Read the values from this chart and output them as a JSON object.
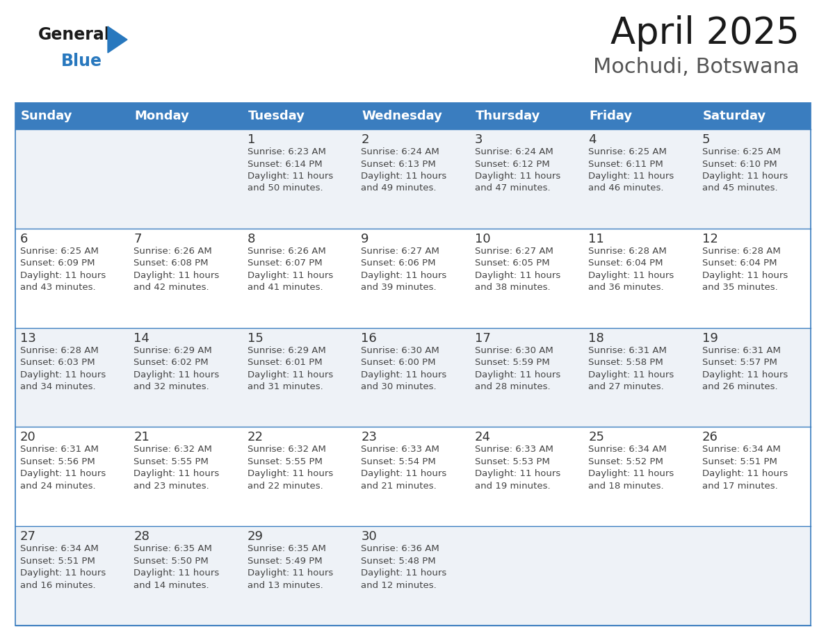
{
  "title": "April 2025",
  "subtitle": "Mochudi, Botswana",
  "days_of_week": [
    "Sunday",
    "Monday",
    "Tuesday",
    "Wednesday",
    "Thursday",
    "Friday",
    "Saturday"
  ],
  "header_bg": "#3a7dbf",
  "header_text": "#ffffff",
  "row_bg_odd": "#eef2f7",
  "row_bg_even": "#ffffff",
  "cell_border": "#3a7dbf",
  "day_number_color": "#333333",
  "text_color": "#444444",
  "calendar_data": [
    [
      "",
      "",
      "1\nSunrise: 6:23 AM\nSunset: 6:14 PM\nDaylight: 11 hours\nand 50 minutes.",
      "2\nSunrise: 6:24 AM\nSunset: 6:13 PM\nDaylight: 11 hours\nand 49 minutes.",
      "3\nSunrise: 6:24 AM\nSunset: 6:12 PM\nDaylight: 11 hours\nand 47 minutes.",
      "4\nSunrise: 6:25 AM\nSunset: 6:11 PM\nDaylight: 11 hours\nand 46 minutes.",
      "5\nSunrise: 6:25 AM\nSunset: 6:10 PM\nDaylight: 11 hours\nand 45 minutes."
    ],
    [
      "6\nSunrise: 6:25 AM\nSunset: 6:09 PM\nDaylight: 11 hours\nand 43 minutes.",
      "7\nSunrise: 6:26 AM\nSunset: 6:08 PM\nDaylight: 11 hours\nand 42 minutes.",
      "8\nSunrise: 6:26 AM\nSunset: 6:07 PM\nDaylight: 11 hours\nand 41 minutes.",
      "9\nSunrise: 6:27 AM\nSunset: 6:06 PM\nDaylight: 11 hours\nand 39 minutes.",
      "10\nSunrise: 6:27 AM\nSunset: 6:05 PM\nDaylight: 11 hours\nand 38 minutes.",
      "11\nSunrise: 6:28 AM\nSunset: 6:04 PM\nDaylight: 11 hours\nand 36 minutes.",
      "12\nSunrise: 6:28 AM\nSunset: 6:04 PM\nDaylight: 11 hours\nand 35 minutes."
    ],
    [
      "13\nSunrise: 6:28 AM\nSunset: 6:03 PM\nDaylight: 11 hours\nand 34 minutes.",
      "14\nSunrise: 6:29 AM\nSunset: 6:02 PM\nDaylight: 11 hours\nand 32 minutes.",
      "15\nSunrise: 6:29 AM\nSunset: 6:01 PM\nDaylight: 11 hours\nand 31 minutes.",
      "16\nSunrise: 6:30 AM\nSunset: 6:00 PM\nDaylight: 11 hours\nand 30 minutes.",
      "17\nSunrise: 6:30 AM\nSunset: 5:59 PM\nDaylight: 11 hours\nand 28 minutes.",
      "18\nSunrise: 6:31 AM\nSunset: 5:58 PM\nDaylight: 11 hours\nand 27 minutes.",
      "19\nSunrise: 6:31 AM\nSunset: 5:57 PM\nDaylight: 11 hours\nand 26 minutes."
    ],
    [
      "20\nSunrise: 6:31 AM\nSunset: 5:56 PM\nDaylight: 11 hours\nand 24 minutes.",
      "21\nSunrise: 6:32 AM\nSunset: 5:55 PM\nDaylight: 11 hours\nand 23 minutes.",
      "22\nSunrise: 6:32 AM\nSunset: 5:55 PM\nDaylight: 11 hours\nand 22 minutes.",
      "23\nSunrise: 6:33 AM\nSunset: 5:54 PM\nDaylight: 11 hours\nand 21 minutes.",
      "24\nSunrise: 6:33 AM\nSunset: 5:53 PM\nDaylight: 11 hours\nand 19 minutes.",
      "25\nSunrise: 6:34 AM\nSunset: 5:52 PM\nDaylight: 11 hours\nand 18 minutes.",
      "26\nSunrise: 6:34 AM\nSunset: 5:51 PM\nDaylight: 11 hours\nand 17 minutes."
    ],
    [
      "27\nSunrise: 6:34 AM\nSunset: 5:51 PM\nDaylight: 11 hours\nand 16 minutes.",
      "28\nSunrise: 6:35 AM\nSunset: 5:50 PM\nDaylight: 11 hours\nand 14 minutes.",
      "29\nSunrise: 6:35 AM\nSunset: 5:49 PM\nDaylight: 11 hours\nand 13 minutes.",
      "30\nSunrise: 6:36 AM\nSunset: 5:48 PM\nDaylight: 11 hours\nand 12 minutes.",
      "",
      "",
      ""
    ]
  ],
  "logo_general_color": "#1a1a1a",
  "logo_blue_color": "#2878be",
  "title_fontsize": 38,
  "subtitle_fontsize": 22,
  "header_fontsize": 13,
  "cell_fontsize": 9.5,
  "day_num_fontsize": 13
}
